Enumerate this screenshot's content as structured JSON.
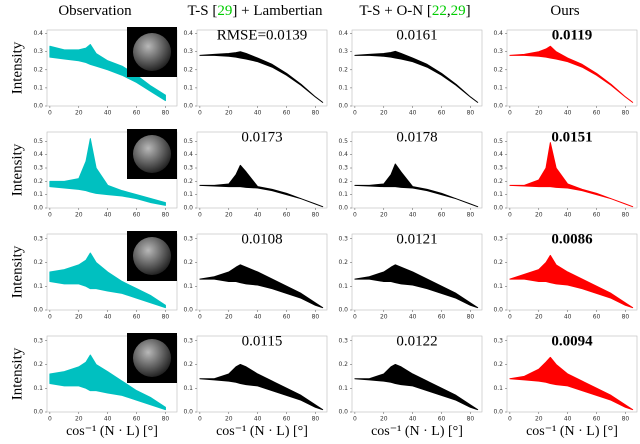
{
  "headers": [
    [
      {
        "text": "Observation"
      }
    ],
    [
      {
        "text": "T-S ["
      },
      {
        "text": "29",
        "color": "#00cc00"
      },
      {
        "text": "] + Lambertian"
      }
    ],
    [
      {
        "text": "T-S + O-N ["
      },
      {
        "text": "22",
        "color": "#00cc00"
      },
      {
        "text": ","
      },
      {
        "text": "29",
        "color": "#00cc00"
      },
      {
        "text": "]"
      }
    ],
    [
      {
        "text": "Ours"
      }
    ]
  ],
  "y_label": "Intensity",
  "x_label": "cos⁻¹ (N · L) [°]",
  "chart_data": [
    {
      "type": "band",
      "color": "#00c0c0",
      "xlim": [
        -2,
        88
      ],
      "xticks": [
        0,
        20,
        40,
        60,
        80
      ],
      "ylim": [
        0,
        0.42
      ],
      "yticks": [
        {
          "value": 0,
          "label": "0.0"
        },
        0.1,
        0.2,
        0.3,
        0.4
      ],
      "x": [
        0,
        10,
        20,
        25,
        28,
        32,
        40,
        50,
        60,
        70,
        80
      ],
      "upper": [
        0.33,
        0.31,
        0.31,
        0.32,
        0.34,
        0.29,
        0.25,
        0.22,
        0.17,
        0.11,
        0.06
      ],
      "lower": [
        0.27,
        0.26,
        0.25,
        0.24,
        0.23,
        0.22,
        0.2,
        0.17,
        0.13,
        0.08,
        0.03
      ]
    },
    {
      "type": "band",
      "color": "#000000",
      "annotation": "RMSE=0.0139",
      "xlim": [
        -2,
        88
      ],
      "xticks": [
        0,
        20,
        40,
        60,
        80
      ],
      "ylim": [
        0,
        0.42
      ],
      "yticks": [
        {
          "value": 0,
          "label": "0.0"
        },
        0.1,
        0.2,
        0.3,
        0.4
      ],
      "x": [
        0,
        10,
        20,
        25,
        28,
        32,
        40,
        50,
        60,
        70,
        80,
        85
      ],
      "upper": [
        0.28,
        0.285,
        0.29,
        0.295,
        0.3,
        0.29,
        0.265,
        0.23,
        0.18,
        0.12,
        0.05,
        0.02
      ],
      "lower": [
        0.28,
        0.28,
        0.275,
        0.27,
        0.265,
        0.26,
        0.245,
        0.215,
        0.17,
        0.115,
        0.05,
        0.02
      ]
    },
    {
      "type": "band",
      "color": "#000000",
      "annotation": "0.0161",
      "xlim": [
        -2,
        88
      ],
      "xticks": [
        0,
        20,
        40,
        60,
        80
      ],
      "ylim": [
        0,
        0.42
      ],
      "yticks": [
        {
          "value": 0,
          "label": "0.0"
        },
        0.1,
        0.2,
        0.3,
        0.4
      ],
      "x": [
        0,
        10,
        20,
        25,
        28,
        32,
        40,
        50,
        60,
        70,
        80,
        85
      ],
      "upper": [
        0.28,
        0.285,
        0.29,
        0.296,
        0.302,
        0.29,
        0.265,
        0.23,
        0.18,
        0.12,
        0.05,
        0.02
      ],
      "lower": [
        0.28,
        0.28,
        0.275,
        0.27,
        0.265,
        0.26,
        0.245,
        0.215,
        0.17,
        0.115,
        0.05,
        0.02
      ]
    },
    {
      "type": "band",
      "color": "#ff0000",
      "annotation": "0.0119",
      "bold": true,
      "xlim": [
        -2,
        88
      ],
      "xticks": [
        0,
        20,
        40,
        60,
        80
      ],
      "ylim": [
        0,
        0.42
      ],
      "yticks": [
        {
          "value": 0,
          "label": "0.0"
        },
        0.1,
        0.2,
        0.3,
        0.4
      ],
      "x": [
        0,
        10,
        20,
        25,
        28,
        32,
        40,
        50,
        60,
        70,
        80,
        85
      ],
      "upper": [
        0.28,
        0.285,
        0.3,
        0.315,
        0.33,
        0.3,
        0.265,
        0.23,
        0.18,
        0.12,
        0.05,
        0.02
      ],
      "lower": [
        0.28,
        0.28,
        0.275,
        0.27,
        0.265,
        0.26,
        0.245,
        0.215,
        0.17,
        0.115,
        0.05,
        0.02
      ]
    },
    {
      "type": "band",
      "color": "#00c0c0",
      "xlim": [
        -2,
        88
      ],
      "xticks": [
        0,
        20,
        40,
        60,
        80
      ],
      "ylim": [
        0,
        0.57
      ],
      "yticks": [
        {
          "value": 0,
          "label": "0.0"
        },
        0.1,
        0.2,
        0.3,
        0.4,
        0.5
      ],
      "x": [
        0,
        10,
        20,
        25,
        28,
        32,
        40,
        50,
        60,
        70,
        80
      ],
      "upper": [
        0.2,
        0.2,
        0.22,
        0.35,
        0.52,
        0.3,
        0.17,
        0.13,
        0.1,
        0.07,
        0.04
      ],
      "lower": [
        0.16,
        0.15,
        0.14,
        0.13,
        0.12,
        0.11,
        0.1,
        0.09,
        0.07,
        0.04,
        0.02
      ]
    },
    {
      "type": "band",
      "color": "#000000",
      "annotation": "0.0173",
      "xlim": [
        -2,
        88
      ],
      "xticks": [
        0,
        20,
        40,
        60,
        80
      ],
      "ylim": [
        0,
        0.57
      ],
      "yticks": [
        {
          "value": 0,
          "label": "0.0"
        },
        0.1,
        0.2,
        0.3,
        0.4,
        0.5
      ],
      "x": [
        0,
        10,
        20,
        25,
        28,
        32,
        40,
        50,
        60,
        70,
        80,
        85
      ],
      "upper": [
        0.17,
        0.17,
        0.18,
        0.25,
        0.32,
        0.27,
        0.16,
        0.14,
        0.11,
        0.07,
        0.03,
        0.01
      ],
      "lower": [
        0.17,
        0.165,
        0.16,
        0.16,
        0.16,
        0.155,
        0.15,
        0.13,
        0.1,
        0.07,
        0.03,
        0.01
      ]
    },
    {
      "type": "band",
      "color": "#000000",
      "annotation": "0.0178",
      "xlim": [
        -2,
        88
      ],
      "xticks": [
        0,
        20,
        40,
        60,
        80
      ],
      "ylim": [
        0,
        0.57
      ],
      "yticks": [
        {
          "value": 0,
          "label": "0.0"
        },
        0.1,
        0.2,
        0.3,
        0.4,
        0.5
      ],
      "x": [
        0,
        10,
        20,
        25,
        28,
        32,
        40,
        50,
        60,
        70,
        80,
        85
      ],
      "upper": [
        0.17,
        0.17,
        0.18,
        0.25,
        0.33,
        0.27,
        0.16,
        0.14,
        0.11,
        0.07,
        0.03,
        0.01
      ],
      "lower": [
        0.17,
        0.165,
        0.16,
        0.16,
        0.16,
        0.155,
        0.15,
        0.13,
        0.1,
        0.07,
        0.03,
        0.01
      ]
    },
    {
      "type": "band",
      "color": "#ff0000",
      "annotation": "0.0151",
      "bold": true,
      "xlim": [
        -2,
        88
      ],
      "xticks": [
        0,
        20,
        40,
        60,
        80
      ],
      "ylim": [
        0,
        0.57
      ],
      "yticks": [
        {
          "value": 0,
          "label": "0.0"
        },
        0.1,
        0.2,
        0.3,
        0.4,
        0.5
      ],
      "x": [
        0,
        10,
        20,
        25,
        28,
        32,
        40,
        50,
        60,
        70,
        80,
        85
      ],
      "upper": [
        0.17,
        0.17,
        0.21,
        0.3,
        0.49,
        0.3,
        0.18,
        0.14,
        0.11,
        0.07,
        0.03,
        0.01
      ],
      "lower": [
        0.17,
        0.165,
        0.16,
        0.16,
        0.16,
        0.155,
        0.15,
        0.13,
        0.1,
        0.07,
        0.03,
        0.01
      ]
    },
    {
      "type": "band",
      "color": "#00c0c0",
      "xlim": [
        -2,
        88
      ],
      "xticks": [
        0,
        20,
        40,
        60,
        80
      ],
      "ylim": [
        0,
        0.32
      ],
      "yticks": [
        {
          "value": 0,
          "label": "0.0"
        },
        0.1,
        0.2,
        0.3
      ],
      "x": [
        0,
        10,
        20,
        25,
        28,
        32,
        40,
        50,
        60,
        70,
        80
      ],
      "upper": [
        0.16,
        0.17,
        0.19,
        0.21,
        0.24,
        0.2,
        0.16,
        0.12,
        0.09,
        0.06,
        0.02
      ],
      "lower": [
        0.12,
        0.11,
        0.11,
        0.1,
        0.09,
        0.09,
        0.08,
        0.07,
        0.05,
        0.03,
        0.01
      ]
    },
    {
      "type": "band",
      "color": "#000000",
      "annotation": "0.0108",
      "xlim": [
        -2,
        88
      ],
      "xticks": [
        0,
        20,
        40,
        60,
        80
      ],
      "ylim": [
        0,
        0.32
      ],
      "yticks": [
        {
          "value": 0,
          "label": "0.0"
        },
        0.1,
        0.2,
        0.3
      ],
      "x": [
        0,
        10,
        20,
        25,
        28,
        32,
        40,
        50,
        60,
        70,
        80,
        85
      ],
      "upper": [
        0.13,
        0.14,
        0.16,
        0.18,
        0.19,
        0.18,
        0.16,
        0.13,
        0.1,
        0.07,
        0.03,
        0.01
      ],
      "lower": [
        0.13,
        0.13,
        0.12,
        0.12,
        0.115,
        0.11,
        0.105,
        0.09,
        0.07,
        0.05,
        0.02,
        0.01
      ]
    },
    {
      "type": "band",
      "color": "#000000",
      "annotation": "0.0121",
      "xlim": [
        -2,
        88
      ],
      "xticks": [
        0,
        20,
        40,
        60,
        80
      ],
      "ylim": [
        0,
        0.32
      ],
      "yticks": [
        {
          "value": 0,
          "label": "0.0"
        },
        0.1,
        0.2,
        0.3
      ],
      "x": [
        0,
        10,
        20,
        25,
        28,
        32,
        40,
        50,
        60,
        70,
        80,
        85
      ],
      "upper": [
        0.13,
        0.14,
        0.16,
        0.18,
        0.19,
        0.18,
        0.16,
        0.13,
        0.1,
        0.07,
        0.03,
        0.01
      ],
      "lower": [
        0.13,
        0.13,
        0.12,
        0.12,
        0.115,
        0.11,
        0.105,
        0.09,
        0.07,
        0.05,
        0.02,
        0.01
      ]
    },
    {
      "type": "band",
      "color": "#ff0000",
      "annotation": "0.0086",
      "bold": true,
      "xlim": [
        -2,
        88
      ],
      "xticks": [
        0,
        20,
        40,
        60,
        80
      ],
      "ylim": [
        0,
        0.32
      ],
      "yticks": [
        {
          "value": 0,
          "label": "0.0"
        },
        0.1,
        0.2,
        0.3
      ],
      "x": [
        0,
        10,
        20,
        25,
        28,
        32,
        40,
        50,
        60,
        70,
        80,
        85
      ],
      "upper": [
        0.13,
        0.15,
        0.17,
        0.2,
        0.23,
        0.19,
        0.16,
        0.13,
        0.1,
        0.07,
        0.03,
        0.01
      ],
      "lower": [
        0.13,
        0.13,
        0.12,
        0.12,
        0.115,
        0.11,
        0.105,
        0.09,
        0.07,
        0.05,
        0.02,
        0.01
      ]
    },
    {
      "type": "band",
      "color": "#00c0c0",
      "xlim": [
        -2,
        88
      ],
      "xticks": [
        0,
        20,
        40,
        60,
        80
      ],
      "ylim": [
        0,
        0.32
      ],
      "yticks": [
        {
          "value": 0,
          "label": "0.0"
        },
        0.1,
        0.2,
        0.3
      ],
      "x": [
        0,
        10,
        20,
        25,
        28,
        32,
        40,
        50,
        60,
        70,
        80
      ],
      "upper": [
        0.16,
        0.17,
        0.19,
        0.21,
        0.24,
        0.2,
        0.17,
        0.13,
        0.09,
        0.06,
        0.02
      ],
      "lower": [
        0.12,
        0.11,
        0.11,
        0.1,
        0.09,
        0.09,
        0.08,
        0.07,
        0.05,
        0.03,
        0.01
      ]
    },
    {
      "type": "band",
      "color": "#000000",
      "annotation": "0.0115",
      "xlim": [
        -2,
        88
      ],
      "xticks": [
        0,
        20,
        40,
        60,
        80
      ],
      "ylim": [
        0,
        0.32
      ],
      "yticks": [
        {
          "value": 0,
          "label": "0.0"
        },
        0.1,
        0.2,
        0.3
      ],
      "x": [
        0,
        10,
        20,
        25,
        28,
        32,
        40,
        50,
        60,
        70,
        80,
        85
      ],
      "upper": [
        0.14,
        0.14,
        0.16,
        0.19,
        0.2,
        0.19,
        0.16,
        0.13,
        0.1,
        0.07,
        0.03,
        0.01
      ],
      "lower": [
        0.14,
        0.135,
        0.13,
        0.125,
        0.12,
        0.115,
        0.11,
        0.09,
        0.07,
        0.05,
        0.02,
        0.01
      ]
    },
    {
      "type": "band",
      "color": "#000000",
      "annotation": "0.0122",
      "xlim": [
        -2,
        88
      ],
      "xticks": [
        0,
        20,
        40,
        60,
        80
      ],
      "ylim": [
        0,
        0.32
      ],
      "yticks": [
        {
          "value": 0,
          "label": "0.0"
        },
        0.1,
        0.2,
        0.3
      ],
      "x": [
        0,
        10,
        20,
        25,
        28,
        32,
        40,
        50,
        60,
        70,
        80,
        85
      ],
      "upper": [
        0.14,
        0.14,
        0.16,
        0.19,
        0.2,
        0.19,
        0.16,
        0.13,
        0.1,
        0.07,
        0.03,
        0.01
      ],
      "lower": [
        0.14,
        0.135,
        0.13,
        0.125,
        0.12,
        0.115,
        0.11,
        0.09,
        0.07,
        0.05,
        0.02,
        0.01
      ]
    },
    {
      "type": "band",
      "color": "#ff0000",
      "annotation": "0.0094",
      "bold": true,
      "xlim": [
        -2,
        88
      ],
      "xticks": [
        0,
        20,
        40,
        60,
        80
      ],
      "ylim": [
        0,
        0.32
      ],
      "yticks": [
        {
          "value": 0,
          "label": "0.0"
        },
        0.1,
        0.2,
        0.3
      ],
      "x": [
        0,
        10,
        20,
        25,
        28,
        32,
        40,
        50,
        60,
        70,
        80,
        85
      ],
      "upper": [
        0.14,
        0.15,
        0.18,
        0.21,
        0.23,
        0.2,
        0.16,
        0.13,
        0.1,
        0.07,
        0.03,
        0.01
      ],
      "lower": [
        0.14,
        0.135,
        0.13,
        0.125,
        0.12,
        0.115,
        0.11,
        0.09,
        0.07,
        0.05,
        0.02,
        0.01
      ]
    }
  ]
}
